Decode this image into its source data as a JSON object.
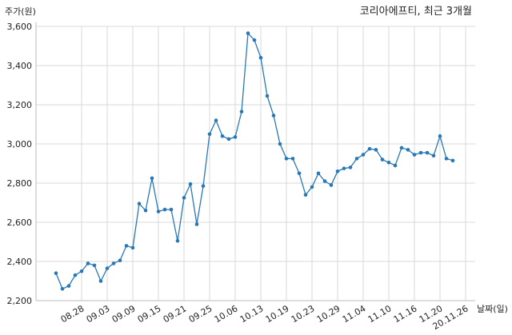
{
  "chart_data": {
    "type": "line",
    "title": "코리아에프티, 최근 3개월",
    "xlabel": "날짜(일)",
    "ylabel": "주가(원)",
    "ylim": [
      2200,
      3600
    ],
    "yticks": [
      "2,200",
      "2,400",
      "2,600",
      "2,800",
      "3,000",
      "3,200",
      "3,400",
      "3,600"
    ],
    "grid": true,
    "line_color": "#2878b5",
    "xtick_labels": [
      "08.28",
      "09.03",
      "09.09",
      "09.15",
      "09.21",
      "09.25",
      "10.06",
      "10.13",
      "10.19",
      "10.23",
      "10.29",
      "11.04",
      "11.10",
      "11.16",
      "11.20",
      "20.11.26"
    ],
    "series": [
      {
        "values": [
          2340,
          2260,
          2275,
          2330,
          2350,
          2390,
          2380,
          2300,
          2365,
          2390,
          2405,
          2480,
          2470,
          2695,
          2660,
          2825,
          2655,
          2665,
          2665,
          2505,
          2725,
          2795,
          2590,
          2785,
          3050,
          3120,
          3040,
          3025,
          3035,
          3165,
          3565,
          3530,
          3440,
          3245,
          3145,
          3000,
          2925,
          2925,
          2850,
          2740,
          2780,
          2850,
          2810,
          2790,
          2860,
          2875,
          2880,
          2925,
          2945,
          2975,
          2970,
          2920,
          2905,
          2890,
          2980,
          2970,
          2945,
          2955,
          2955,
          2940,
          3040,
          2925,
          2915
        ]
      }
    ]
  }
}
